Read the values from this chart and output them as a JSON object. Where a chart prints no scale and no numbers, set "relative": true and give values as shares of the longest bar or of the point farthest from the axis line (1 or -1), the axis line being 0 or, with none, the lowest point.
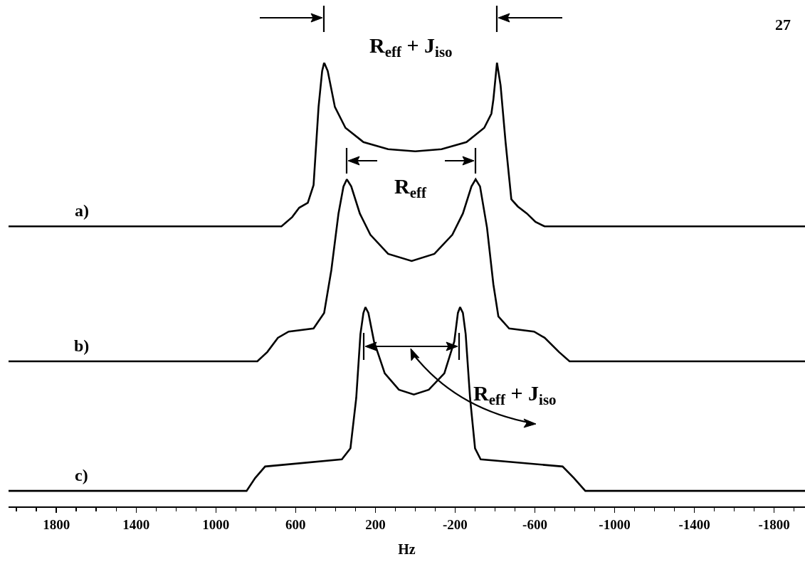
{
  "chart_data": {
    "type": "line",
    "relative": true,
    "xlim": [
      2040,
      -1955
    ],
    "tick_labels": "x",
    "xlabel": "Hz",
    "xticks": [
      {
        "value": 2000,
        "label": null
      },
      {
        "value": 1900,
        "label": null
      },
      1800,
      {
        "value": 1700,
        "label": null
      },
      {
        "value": 1600,
        "label": null
      },
      {
        "value": 1500,
        "label": null
      },
      1400,
      {
        "value": 1300,
        "label": null
      },
      {
        "value": 1200,
        "label": null
      },
      {
        "value": 1100,
        "label": null
      },
      1000,
      {
        "value": 900,
        "label": null
      },
      {
        "value": 800,
        "label": null
      },
      {
        "value": 700,
        "label": null
      },
      600,
      {
        "value": 500,
        "label": null
      },
      {
        "value": 400,
        "label": null
      },
      {
        "value": 300,
        "label": null
      },
      200,
      {
        "value": 100,
        "label": null
      },
      {
        "value": 0,
        "label": null
      },
      {
        "value": -100,
        "label": null
      },
      -200,
      {
        "value": -300,
        "label": null
      },
      {
        "value": -400,
        "label": null
      },
      {
        "value": -500,
        "label": null
      },
      -600,
      {
        "value": -700,
        "label": null
      },
      {
        "value": -800,
        "label": null
      },
      {
        "value": -900,
        "label": null
      },
      -1000,
      {
        "value": -1100,
        "label": null
      },
      {
        "value": -1200,
        "label": null
      },
      {
        "value": -1300,
        "label": null
      },
      -1400,
      {
        "value": -1500,
        "label": null
      },
      {
        "value": -1600,
        "label": null
      },
      {
        "value": -1700,
        "label": null
      },
      -1800,
      {
        "value": -1900,
        "label": null
      }
    ],
    "annotations": [
      "R$_{eff}$ + J$_{iso}$",
      "27",
      "R$_{eff}$",
      "R$_{eff}$ + J$_{iso}$"
    ],
    "series": [
      {
        "name": "a)",
        "color": "#000000",
        "x": [
          2040,
          671,
          617,
          582,
          539,
          510,
          485,
          467,
          457,
          439,
          403,
          350,
          260,
          136,
          0,
          -132,
          -257,
          -346,
          -382,
          -392,
          -410,
          -428,
          -453,
          -482,
          -514,
          -560,
          -603,
          -649,
          -1955
        ],
        "values": [
          0.631,
          0.631,
          0.652,
          0.673,
          0.684,
          0.724,
          0.9,
          0.981,
          1,
          0.981,
          0.9,
          0.853,
          0.821,
          0.805,
          0.8,
          0.805,
          0.821,
          0.853,
          0.885,
          0.917,
          1,
          0.949,
          0.821,
          0.692,
          0.676,
          0.66,
          0.641,
          0.631,
          0.631
        ]
      },
      {
        "name": "b)",
        "color": "#000000",
        "x": [
          2040,
          792,
          742,
          689,
          635,
          510,
          457,
          421,
          385,
          360,
          343,
          321,
          278,
          225,
          136,
          18,
          -96,
          -186,
          -239,
          -282,
          -303,
          -325,
          -360,
          -392,
          -417,
          -471,
          -596,
          -649,
          -721,
          -774,
          -1955
        ],
        "values": [
          0.327,
          0.327,
          0.348,
          0.38,
          0.394,
          0.401,
          0.436,
          0.532,
          0.66,
          0.721,
          0.737,
          0.721,
          0.66,
          0.612,
          0.569,
          0.553,
          0.569,
          0.612,
          0.66,
          0.721,
          0.737,
          0.721,
          0.628,
          0.5,
          0.428,
          0.401,
          0.394,
          0.38,
          0.348,
          0.327,
          0.327
        ]
      },
      {
        "name": "c)",
        "color": "#000000",
        "x": [
          2040,
          846,
          803,
          753,
          368,
          325,
          296,
          275,
          260,
          250,
          235,
          207,
          153,
          82,
          7,
          -68,
          -146,
          -196,
          -214,
          -225,
          -239,
          -253,
          -275,
          -300,
          -328,
          -739,
          -796,
          -853,
          -1955
        ],
        "values": [
          0.035,
          0.035,
          0.064,
          0.09,
          0.106,
          0.131,
          0.244,
          0.388,
          0.436,
          0.449,
          0.436,
          0.372,
          0.3,
          0.263,
          0.252,
          0.263,
          0.3,
          0.372,
          0.436,
          0.449,
          0.436,
          0.388,
          0.244,
          0.131,
          0.106,
          0.09,
          0.064,
          0.035,
          0.035
        ]
      }
    ]
  }
}
